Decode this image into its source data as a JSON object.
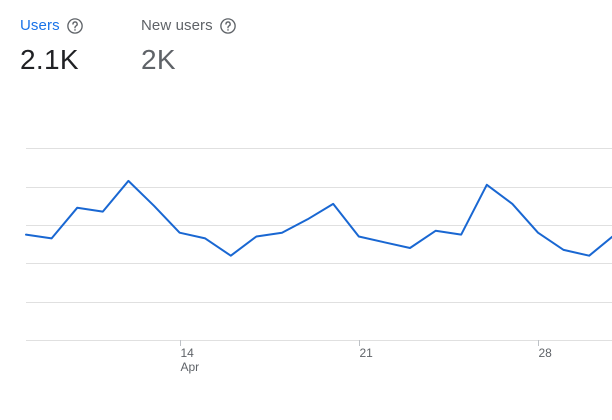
{
  "metrics": {
    "users": {
      "label": "Users",
      "value": "2.1K",
      "help_icon": "help-circle-icon",
      "selected": true
    },
    "new_users": {
      "label": "New users",
      "value": "2K",
      "help_icon": "help-circle-icon",
      "selected": false
    }
  },
  "colors": {
    "accent": "#1a73e8",
    "line": "#1967d2",
    "text_primary": "#202124",
    "text_secondary": "#5f6368",
    "gridline": "#e0e0e0"
  },
  "chart_data": {
    "type": "line",
    "xlabel": "",
    "ylabel": "",
    "grid": true,
    "x_tick_labels": [
      {
        "day": 14,
        "label": "14",
        "sublabel": "Apr"
      },
      {
        "day": 21,
        "label": "21",
        "sublabel": ""
      },
      {
        "day": 28,
        "label": "28",
        "sublabel": ""
      }
    ],
    "ylim": [
      0,
      120
    ],
    "y_gridlines": [
      0,
      20,
      40,
      60,
      80,
      100
    ],
    "series": [
      {
        "x": [
          8,
          9,
          10,
          11,
          12,
          13,
          14,
          15,
          16,
          17,
          18,
          19,
          20,
          21,
          22,
          23,
          24,
          25,
          26,
          27,
          28,
          29,
          30,
          31
        ],
        "values": [
          55,
          53,
          69,
          67,
          83,
          70,
          56,
          53,
          44,
          54,
          56,
          63,
          71,
          54,
          51,
          48,
          57,
          55,
          81,
          71,
          56,
          47,
          44,
          55
        ]
      }
    ]
  }
}
